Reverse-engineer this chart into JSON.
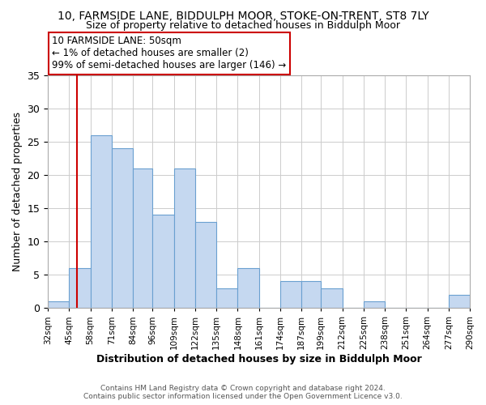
{
  "title": "10, FARMSIDE LANE, BIDDULPH MOOR, STOKE-ON-TRENT, ST8 7LY",
  "subtitle": "Size of property relative to detached houses in Biddulph Moor",
  "xlabel": "Distribution of detached houses by size in Biddulph Moor",
  "ylabel": "Number of detached properties",
  "bins": [
    32,
    45,
    58,
    71,
    84,
    96,
    109,
    122,
    135,
    148,
    161,
    174,
    187,
    199,
    212,
    225,
    238,
    251,
    264,
    277,
    290
  ],
  "bin_labels": [
    "32sqm",
    "45sqm",
    "58sqm",
    "71sqm",
    "84sqm",
    "96sqm",
    "109sqm",
    "122sqm",
    "135sqm",
    "148sqm",
    "161sqm",
    "174sqm",
    "187sqm",
    "199sqm",
    "212sqm",
    "225sqm",
    "238sqm",
    "251sqm",
    "264sqm",
    "277sqm",
    "290sqm"
  ],
  "counts": [
    1,
    6,
    26,
    24,
    21,
    14,
    21,
    13,
    3,
    6,
    0,
    4,
    4,
    3,
    0,
    1,
    0,
    0,
    0,
    2
  ],
  "bar_color": "#c5d8f0",
  "bar_edge_color": "#6aa0d0",
  "vline_x": 50,
  "vline_color": "#cc0000",
  "ylim": [
    0,
    35
  ],
  "yticks": [
    0,
    5,
    10,
    15,
    20,
    25,
    30,
    35
  ],
  "annotation_title": "10 FARMSIDE LANE: 50sqm",
  "annotation_line1": "← 1% of detached houses are smaller (2)",
  "annotation_line2": "99% of semi-detached houses are larger (146) →",
  "annotation_box_color": "#ffffff",
  "annotation_box_edge_color": "#cc0000",
  "footer1": "Contains HM Land Registry data © Crown copyright and database right 2024.",
  "footer2": "Contains public sector information licensed under the Open Government Licence v3.0."
}
